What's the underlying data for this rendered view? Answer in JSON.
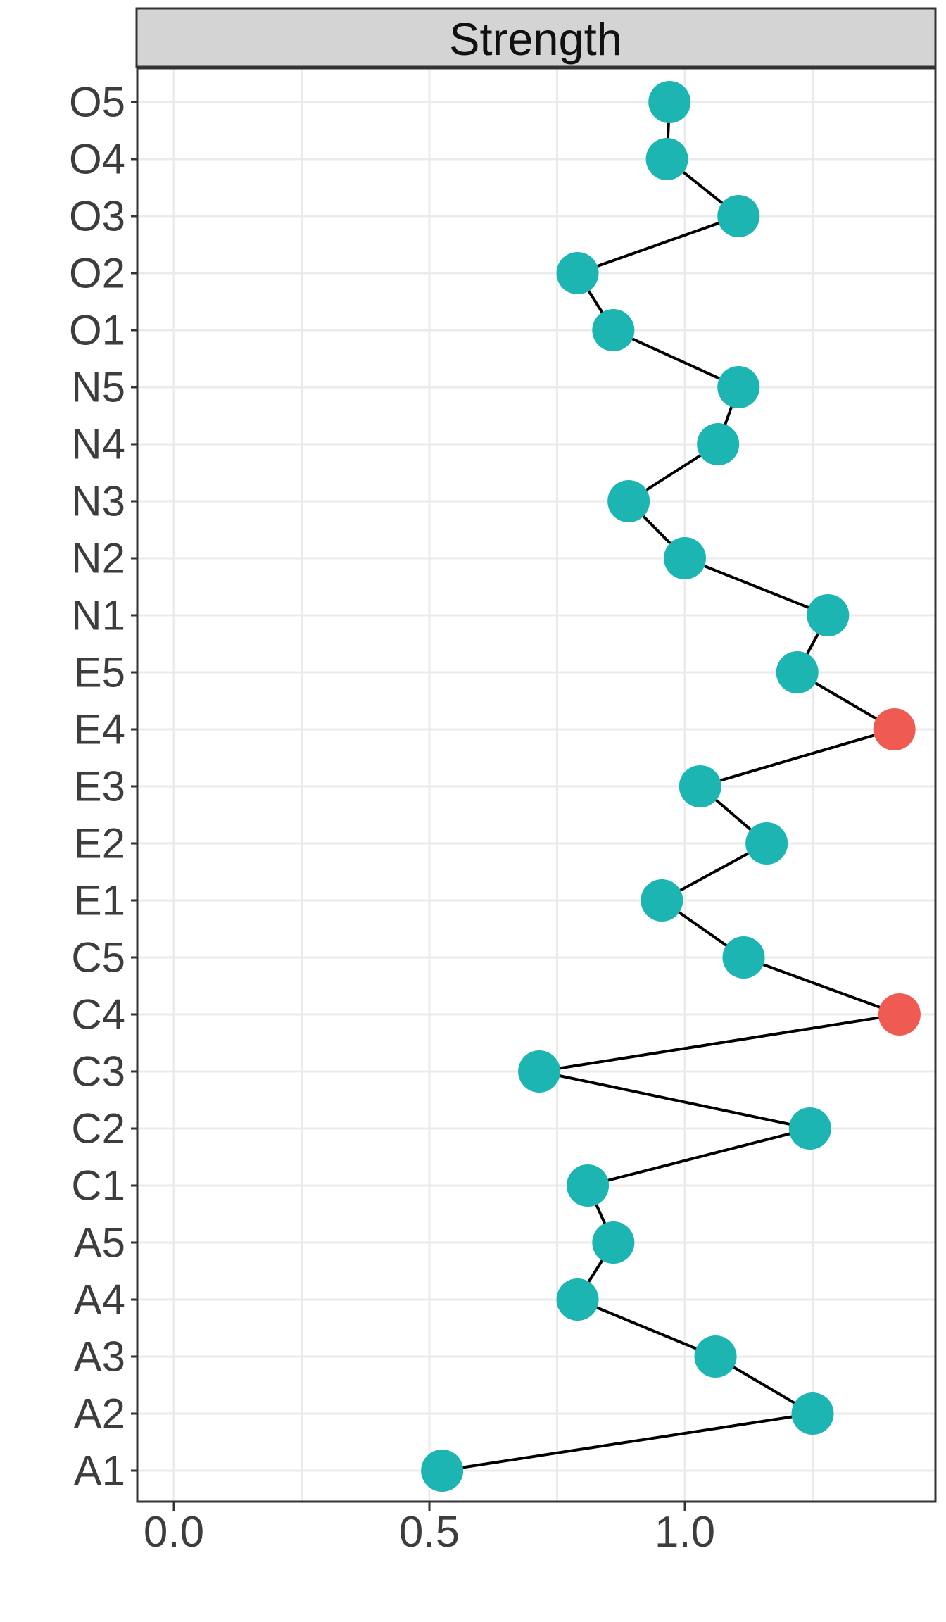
{
  "chart_data": {
    "type": "scatter",
    "title": "Strength",
    "subtitle": "",
    "orientation": "horizontal",
    "connected": true,
    "legend": "none",
    "grid": "on",
    "xlabel": "",
    "ylabel": "",
    "categories": [
      "O5",
      "O4",
      "O3",
      "O2",
      "O1",
      "N5",
      "N4",
      "N3",
      "N2",
      "N1",
      "E5",
      "E4",
      "E3",
      "E2",
      "E1",
      "C5",
      "C4",
      "C3",
      "C2",
      "C1",
      "A5",
      "A4",
      "A3",
      "A2",
      "A1"
    ],
    "values": [
      0.97,
      0.965,
      1.105,
      0.79,
      0.86,
      1.105,
      1.065,
      0.89,
      1.0,
      1.28,
      1.22,
      1.41,
      1.03,
      1.16,
      0.955,
      1.115,
      1.42,
      0.715,
      1.245,
      0.81,
      0.86,
      0.79,
      1.06,
      1.25,
      0.525
    ],
    "highlighted_categories": [
      "E4",
      "C4"
    ],
    "x_ticks": [
      {
        "value": 0.0,
        "label": "0.0"
      },
      {
        "value": 0.5,
        "label": "0.5"
      },
      {
        "value": 1.0,
        "label": "1.0"
      }
    ],
    "x_gridlines": [
      0.0,
      0.25,
      0.5,
      0.75,
      1.0,
      1.25
    ],
    "xlim": [
      -0.072,
      1.49
    ],
    "colors": {
      "point_default": "#1CB5B1",
      "point_highlight": "#EF5A52",
      "line": "#000000",
      "grid": "#EBEBEB",
      "panel_border": "#333333",
      "panel_fill": "#FFFFFF",
      "strip_fill": "#D4D4D4",
      "strip_border": "#333333",
      "strip_text": "#111111",
      "axis_text": "#3D3D3D",
      "tick": "#333333"
    }
  }
}
